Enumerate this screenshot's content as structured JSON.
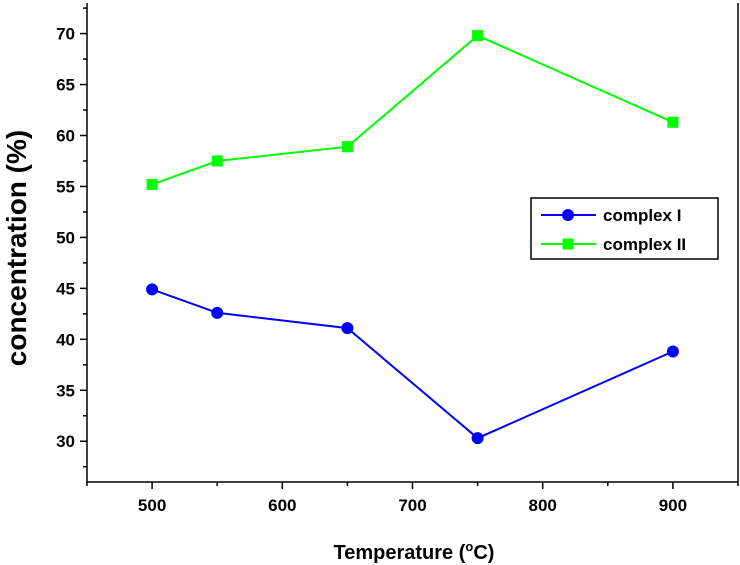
{
  "chart_data": {
    "type": "line",
    "title": "",
    "xlabel": "Temperature (°C)",
    "xlabel_parts": {
      "before": "Temperature (",
      "sup": "o",
      "after": "C)"
    },
    "ylabel": "concentration (%)",
    "xlim": [
      450,
      950
    ],
    "ylim": [
      26,
      73
    ],
    "x_ticks": [
      500,
      600,
      700,
      800,
      900
    ],
    "y_ticks": [
      30,
      35,
      40,
      45,
      50,
      55,
      60,
      65,
      70
    ],
    "x": [
      500,
      550,
      650,
      750,
      900
    ],
    "series": [
      {
        "name": "complex I",
        "color": "#0000ff",
        "marker": "circle",
        "values": [
          44.9,
          42.6,
          41.1,
          30.3,
          38.8
        ]
      },
      {
        "name": "complex II",
        "color": "#00ff00",
        "marker": "square",
        "values": [
          55.2,
          57.5,
          58.9,
          69.8,
          61.3
        ]
      }
    ],
    "legend": {
      "placement": "right"
    },
    "grid": false
  }
}
